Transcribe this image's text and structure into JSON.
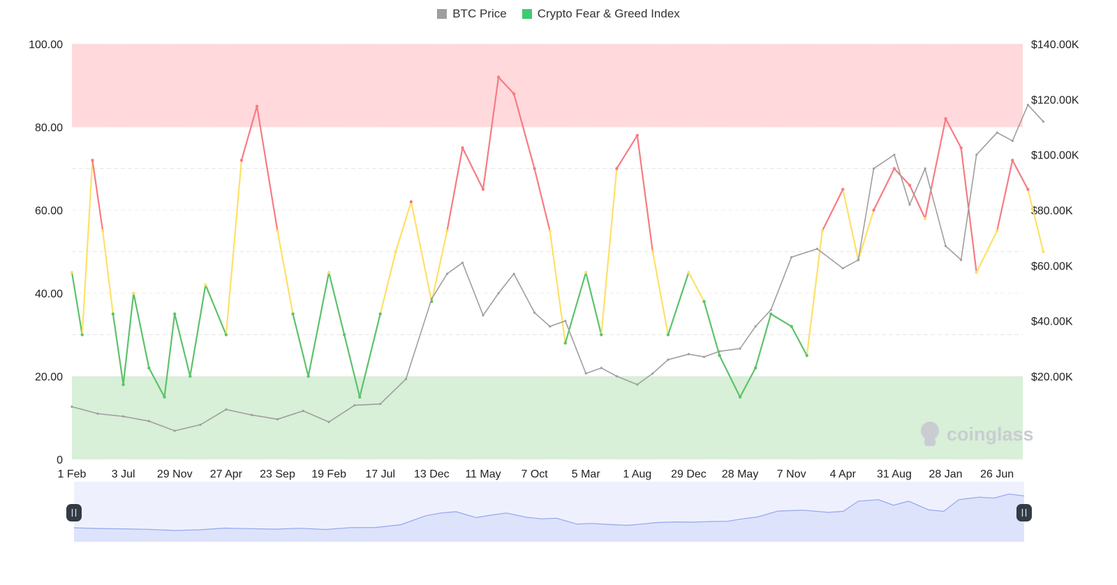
{
  "legend": {
    "btc": {
      "label": "BTC Price",
      "color": "#9e9e9e"
    },
    "fng": {
      "label": "Crypto Fear & Greed Index",
      "color": "#3fca73"
    }
  },
  "watermark": "coinglass",
  "colors": {
    "extreme_greed_band": "#ffd9dc",
    "extreme_fear_band": "#d8efd8",
    "greed_line": "#f77b82",
    "neutral_line": "#ffe066",
    "fear_line": "#5cc26a",
    "btc_line": "#9e9e9e",
    "navigator_fill": "#dde3fb",
    "navigator_line": "#93a6ee",
    "handle": "#333b44"
  },
  "chart_data": {
    "type": "line",
    "title": "",
    "left_axis": {
      "ticks": [
        "0",
        "20.00",
        "40.00",
        "60.00",
        "80.00",
        "100.00"
      ],
      "range": [
        0,
        100
      ]
    },
    "right_axis": {
      "ticks": [
        "$20.00K",
        "$40.00K",
        "$60.00K",
        "$80.00K",
        "$100.00K",
        "$120.00K",
        "$140.00K"
      ],
      "range": [
        -10000,
        140000
      ]
    },
    "x_ticks": [
      "1 Feb",
      "3 Jul",
      "29 Nov",
      "27 Apr",
      "23 Sep",
      "19 Feb",
      "17 Jul",
      "13 Dec",
      "11 May",
      "7 Oct",
      "5 Mar",
      "1 Aug",
      "29 Dec",
      "28 May",
      "7 Nov",
      "4 Apr",
      "31 Aug",
      "28 Jan",
      "26 Jun"
    ],
    "zones": [
      {
        "name": "extreme-greed",
        "from": 80,
        "to": 100
      },
      {
        "name": "extreme-fear",
        "from": 0,
        "to": 20
      }
    ],
    "thresholds": {
      "fear": 40,
      "greed": 60
    },
    "series": [
      {
        "name": "Crypto Fear & Greed Index",
        "axis": "left",
        "x": [
          0,
          0.2,
          0.4,
          0.6,
          0.8,
          1.0,
          1.2,
          1.5,
          1.8,
          2.0,
          2.3,
          2.6,
          3.0,
          3.3,
          3.6,
          4.0,
          4.3,
          4.6,
          5.0,
          5.3,
          5.6,
          6.0,
          6.3,
          6.6,
          7.0,
          7.3,
          7.6,
          8.0,
          8.3,
          8.6,
          9.0,
          9.3,
          9.6,
          10.0,
          10.3,
          10.6,
          11.0,
          11.3,
          11.6,
          12.0,
          12.3,
          12.6,
          13.0,
          13.3,
          13.6,
          14.0,
          14.3,
          14.6,
          15.0,
          15.3,
          15.6,
          16.0,
          16.3,
          16.6,
          17.0,
          17.3,
          17.6,
          18.0,
          18.3,
          18.6,
          18.9
        ],
        "values": [
          45,
          30,
          72,
          55,
          35,
          18,
          40,
          22,
          15,
          35,
          20,
          42,
          30,
          72,
          85,
          55,
          35,
          20,
          45,
          30,
          15,
          35,
          50,
          62,
          38,
          55,
          75,
          65,
          92,
          88,
          70,
          55,
          28,
          45,
          30,
          70,
          78,
          50,
          30,
          45,
          38,
          25,
          15,
          22,
          35,
          32,
          25,
          55,
          65,
          48,
          60,
          70,
          66,
          58,
          82,
          75,
          45,
          55,
          72,
          65,
          50
        ]
      },
      {
        "name": "BTC Price",
        "axis": "right",
        "x": [
          0,
          0.5,
          1.0,
          1.5,
          2.0,
          2.5,
          3.0,
          3.5,
          4.0,
          4.5,
          5.0,
          5.5,
          6.0,
          6.5,
          7.0,
          7.3,
          7.6,
          8.0,
          8.3,
          8.6,
          9.0,
          9.3,
          9.6,
          10.0,
          10.3,
          10.6,
          11.0,
          11.3,
          11.6,
          12.0,
          12.3,
          12.6,
          13.0,
          13.3,
          13.6,
          14.0,
          14.5,
          15.0,
          15.3,
          15.6,
          16.0,
          16.3,
          16.6,
          17.0,
          17.3,
          17.6,
          18.0,
          18.3,
          18.6,
          18.9
        ],
        "values": [
          9000,
          6500,
          5500,
          3800,
          300,
          2500,
          8000,
          6000,
          4500,
          7500,
          3500,
          9500,
          10000,
          19000,
          48000,
          57000,
          61000,
          42000,
          50000,
          57000,
          43000,
          38000,
          40000,
          21000,
          23000,
          20000,
          17000,
          21000,
          26000,
          28000,
          27000,
          29000,
          30000,
          38000,
          44000,
          63000,
          66000,
          59000,
          62000,
          95000,
          100000,
          82000,
          95000,
          67000,
          62000,
          100000,
          108000,
          105000,
          118000,
          112000
        ]
      }
    ]
  }
}
